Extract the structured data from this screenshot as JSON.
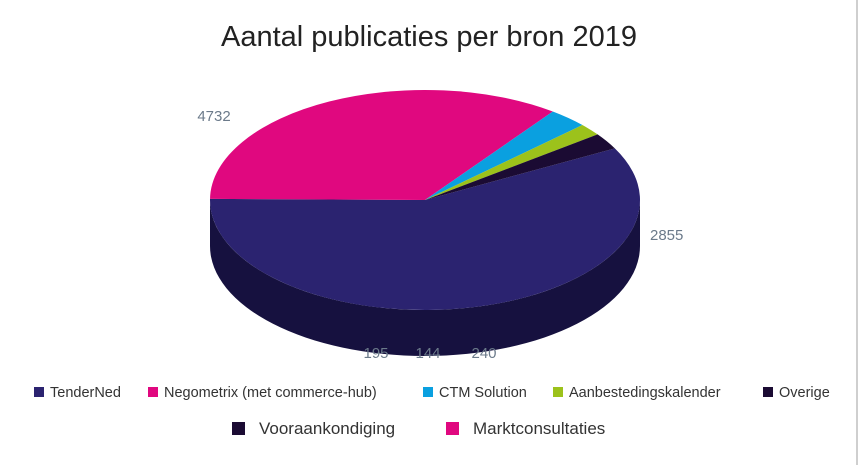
{
  "chart_data": {
    "type": "pie",
    "title": "Aantal publicaties per bron 2019",
    "slices": [
      {
        "name": "TenderNed",
        "value": 4732,
        "label": "4732",
        "color": "#2b2370",
        "side_color": "#16113f"
      },
      {
        "name": "Negometrix (met commerce-hub)",
        "value": 2855,
        "label": "2855",
        "color": "#e0087f",
        "side_color": "#5a0336"
      },
      {
        "name": "CTM Solution",
        "value": 240,
        "label": "240",
        "color": "#0aa0e0",
        "side_color": "#064f75"
      },
      {
        "name": "Aanbestedingskalender",
        "value": 144,
        "label": "144",
        "color": "#9cc21b",
        "side_color": "#4a6010"
      },
      {
        "name": "Overige",
        "value": 195,
        "label": "195",
        "color": "#1b0b33",
        "side_color": "#0c0418"
      }
    ],
    "legend_position": "bottom"
  },
  "secondary_legend": [
    {
      "name": "Vooraankondiging",
      "color": "#1b0b33"
    },
    {
      "name": "Marktconsultaties",
      "color": "#e0087f"
    }
  ]
}
